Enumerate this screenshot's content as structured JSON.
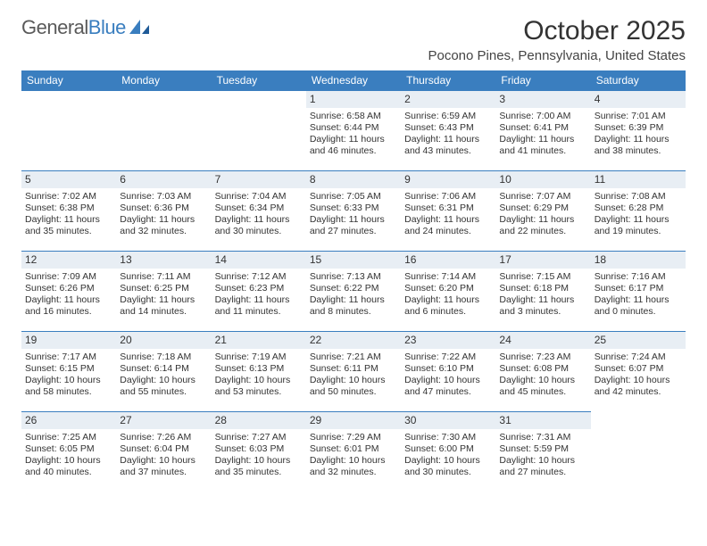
{
  "brand": {
    "name_part1": "General",
    "name_part2": "Blue",
    "brand_gray": "#5a5a5a",
    "brand_blue": "#3a7ebf"
  },
  "header": {
    "month_title": "October 2025",
    "location": "Pocono Pines, Pennsylvania, United States"
  },
  "styling": {
    "header_bg": "#3a7ebf",
    "header_text": "#ffffff",
    "daynum_bg": "#e8eef4",
    "cell_border": "#3a7ebf",
    "text_color": "#333333",
    "background": "#ffffff",
    "body_fontsize": 10.5,
    "daynum_fontsize": 12,
    "th_fontsize": 12,
    "title_fontsize": 30,
    "location_fontsize": 15
  },
  "columns": [
    "Sunday",
    "Monday",
    "Tuesday",
    "Wednesday",
    "Thursday",
    "Friday",
    "Saturday"
  ],
  "labels": {
    "sunrise": "Sunrise:",
    "sunset": "Sunset:",
    "daylight": "Daylight:"
  },
  "weeks": [
    [
      null,
      null,
      null,
      {
        "n": "1",
        "rise": "6:58 AM",
        "set": "6:44 PM",
        "dl1": "11 hours",
        "dl2": "and 46 minutes."
      },
      {
        "n": "2",
        "rise": "6:59 AM",
        "set": "6:43 PM",
        "dl1": "11 hours",
        "dl2": "and 43 minutes."
      },
      {
        "n": "3",
        "rise": "7:00 AM",
        "set": "6:41 PM",
        "dl1": "11 hours",
        "dl2": "and 41 minutes."
      },
      {
        "n": "4",
        "rise": "7:01 AM",
        "set": "6:39 PM",
        "dl1": "11 hours",
        "dl2": "and 38 minutes."
      }
    ],
    [
      {
        "n": "5",
        "rise": "7:02 AM",
        "set": "6:38 PM",
        "dl1": "11 hours",
        "dl2": "and 35 minutes."
      },
      {
        "n": "6",
        "rise": "7:03 AM",
        "set": "6:36 PM",
        "dl1": "11 hours",
        "dl2": "and 32 minutes."
      },
      {
        "n": "7",
        "rise": "7:04 AM",
        "set": "6:34 PM",
        "dl1": "11 hours",
        "dl2": "and 30 minutes."
      },
      {
        "n": "8",
        "rise": "7:05 AM",
        "set": "6:33 PM",
        "dl1": "11 hours",
        "dl2": "and 27 minutes."
      },
      {
        "n": "9",
        "rise": "7:06 AM",
        "set": "6:31 PM",
        "dl1": "11 hours",
        "dl2": "and 24 minutes."
      },
      {
        "n": "10",
        "rise": "7:07 AM",
        "set": "6:29 PM",
        "dl1": "11 hours",
        "dl2": "and 22 minutes."
      },
      {
        "n": "11",
        "rise": "7:08 AM",
        "set": "6:28 PM",
        "dl1": "11 hours",
        "dl2": "and 19 minutes."
      }
    ],
    [
      {
        "n": "12",
        "rise": "7:09 AM",
        "set": "6:26 PM",
        "dl1": "11 hours",
        "dl2": "and 16 minutes."
      },
      {
        "n": "13",
        "rise": "7:11 AM",
        "set": "6:25 PM",
        "dl1": "11 hours",
        "dl2": "and 14 minutes."
      },
      {
        "n": "14",
        "rise": "7:12 AM",
        "set": "6:23 PM",
        "dl1": "11 hours",
        "dl2": "and 11 minutes."
      },
      {
        "n": "15",
        "rise": "7:13 AM",
        "set": "6:22 PM",
        "dl1": "11 hours",
        "dl2": "and 8 minutes."
      },
      {
        "n": "16",
        "rise": "7:14 AM",
        "set": "6:20 PM",
        "dl1": "11 hours",
        "dl2": "and 6 minutes."
      },
      {
        "n": "17",
        "rise": "7:15 AM",
        "set": "6:18 PM",
        "dl1": "11 hours",
        "dl2": "and 3 minutes."
      },
      {
        "n": "18",
        "rise": "7:16 AM",
        "set": "6:17 PM",
        "dl1": "11 hours",
        "dl2": "and 0 minutes."
      }
    ],
    [
      {
        "n": "19",
        "rise": "7:17 AM",
        "set": "6:15 PM",
        "dl1": "10 hours",
        "dl2": "and 58 minutes."
      },
      {
        "n": "20",
        "rise": "7:18 AM",
        "set": "6:14 PM",
        "dl1": "10 hours",
        "dl2": "and 55 minutes."
      },
      {
        "n": "21",
        "rise": "7:19 AM",
        "set": "6:13 PM",
        "dl1": "10 hours",
        "dl2": "and 53 minutes."
      },
      {
        "n": "22",
        "rise": "7:21 AM",
        "set": "6:11 PM",
        "dl1": "10 hours",
        "dl2": "and 50 minutes."
      },
      {
        "n": "23",
        "rise": "7:22 AM",
        "set": "6:10 PM",
        "dl1": "10 hours",
        "dl2": "and 47 minutes."
      },
      {
        "n": "24",
        "rise": "7:23 AM",
        "set": "6:08 PM",
        "dl1": "10 hours",
        "dl2": "and 45 minutes."
      },
      {
        "n": "25",
        "rise": "7:24 AM",
        "set": "6:07 PM",
        "dl1": "10 hours",
        "dl2": "and 42 minutes."
      }
    ],
    [
      {
        "n": "26",
        "rise": "7:25 AM",
        "set": "6:05 PM",
        "dl1": "10 hours",
        "dl2": "and 40 minutes."
      },
      {
        "n": "27",
        "rise": "7:26 AM",
        "set": "6:04 PM",
        "dl1": "10 hours",
        "dl2": "and 37 minutes."
      },
      {
        "n": "28",
        "rise": "7:27 AM",
        "set": "6:03 PM",
        "dl1": "10 hours",
        "dl2": "and 35 minutes."
      },
      {
        "n": "29",
        "rise": "7:29 AM",
        "set": "6:01 PM",
        "dl1": "10 hours",
        "dl2": "and 32 minutes."
      },
      {
        "n": "30",
        "rise": "7:30 AM",
        "set": "6:00 PM",
        "dl1": "10 hours",
        "dl2": "and 30 minutes."
      },
      {
        "n": "31",
        "rise": "7:31 AM",
        "set": "5:59 PM",
        "dl1": "10 hours",
        "dl2": "and 27 minutes."
      },
      null
    ]
  ]
}
